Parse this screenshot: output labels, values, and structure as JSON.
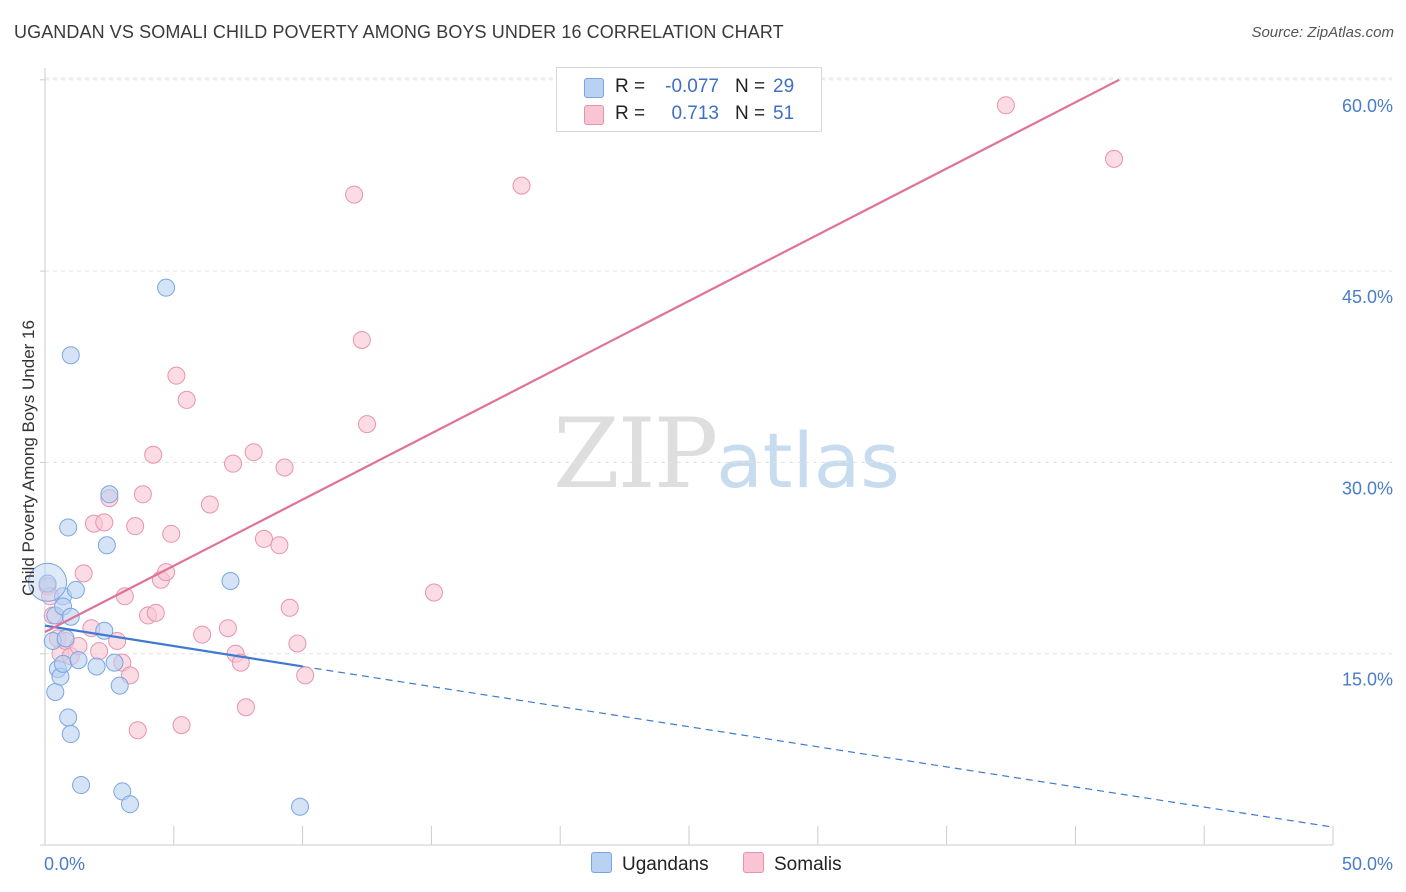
{
  "header": {
    "title": "UGANDAN VS SOMALI CHILD POVERTY AMONG BOYS UNDER 16 CORRELATION CHART",
    "source": "Source: ZipAtlas.com"
  },
  "watermark": {
    "zip": "ZIP",
    "atlas": "atlas"
  },
  "legend": {
    "rows": [
      {
        "r_label": "R =",
        "r_value": "-0.077",
        "n_label": "N =",
        "n_value": "29"
      },
      {
        "r_label": "R =",
        "r_value": "0.713",
        "n_label": "N =",
        "n_value": "51"
      }
    ]
  },
  "bottom_legend": {
    "ugandans": "Ugandans",
    "somalis": "Somalis"
  },
  "colors": {
    "ugandans_fill": "#b9d1f2",
    "ugandans_stroke": "#7aa6e0",
    "ugandans_line": "#3e7ad1",
    "somalis_fill": "#f9c4d4",
    "somalis_stroke": "#e893ad",
    "somalis_line": "#e0729a",
    "tick_text": "#4a7cc9",
    "grid": "#e3e3e3"
  },
  "chart_data": {
    "type": "scatter",
    "title": "UGANDAN VS SOMALI CHILD POVERTY AMONG BOYS UNDER 16 CORRELATION CHART",
    "xlabel": "",
    "ylabel": "Child Poverty Among Boys Under 16",
    "xlim": [
      0,
      50
    ],
    "ylim": [
      0,
      60
    ],
    "x_tick_labels": [
      "0.0%",
      "50.0%"
    ],
    "y_ticks": [
      15,
      30,
      45,
      60
    ],
    "y_tick_labels": [
      "15.0%",
      "30.0%",
      "45.0%",
      "60.0%"
    ],
    "grid": true,
    "series": [
      {
        "name": "Ugandans",
        "points": [
          [
            0.1,
            20.5
          ],
          [
            0.3,
            16.0
          ],
          [
            0.4,
            12.0
          ],
          [
            0.4,
            18.0
          ],
          [
            0.5,
            13.8
          ],
          [
            0.6,
            13.2
          ],
          [
            0.7,
            14.2
          ],
          [
            0.7,
            19.5
          ],
          [
            0.7,
            18.7
          ],
          [
            0.8,
            16.2
          ],
          [
            0.9,
            10.0
          ],
          [
            0.9,
            24.9
          ],
          [
            1.0,
            8.7
          ],
          [
            1.0,
            38.4
          ],
          [
            1.0,
            17.9
          ],
          [
            1.2,
            20.0
          ],
          [
            1.3,
            14.5
          ],
          [
            1.4,
            4.7
          ],
          [
            2.0,
            14.0
          ],
          [
            2.3,
            16.8
          ],
          [
            2.4,
            23.5
          ],
          [
            2.5,
            27.5
          ],
          [
            2.7,
            14.3
          ],
          [
            2.9,
            12.5
          ],
          [
            3.0,
            4.2
          ],
          [
            3.3,
            3.2
          ],
          [
            4.7,
            43.7
          ],
          [
            7.2,
            20.7
          ],
          [
            9.9,
            3.0
          ]
        ],
        "trend": {
          "x0": 0,
          "y0": 17.2,
          "x1": 10,
          "y1": 14.0,
          "dashed_to_x": 50,
          "dashed_to_y": 1.4
        }
      },
      {
        "name": "Somalis",
        "points": [
          [
            0.1,
            20.3
          ],
          [
            0.2,
            19.5
          ],
          [
            0.3,
            18.0
          ],
          [
            0.5,
            16.2
          ],
          [
            0.6,
            15.0
          ],
          [
            0.8,
            16.0
          ],
          [
            1.0,
            14.8
          ],
          [
            1.3,
            15.6
          ],
          [
            1.5,
            21.3
          ],
          [
            1.8,
            17.0
          ],
          [
            1.9,
            25.2
          ],
          [
            2.1,
            15.2
          ],
          [
            2.3,
            25.3
          ],
          [
            2.5,
            27.2
          ],
          [
            2.8,
            16.0
          ],
          [
            3.0,
            14.3
          ],
          [
            3.1,
            19.5
          ],
          [
            3.3,
            13.3
          ],
          [
            3.5,
            25.0
          ],
          [
            3.6,
            9.0
          ],
          [
            3.8,
            27.5
          ],
          [
            4.0,
            18.0
          ],
          [
            4.2,
            30.6
          ],
          [
            4.3,
            18.2
          ],
          [
            4.5,
            20.8
          ],
          [
            4.7,
            21.4
          ],
          [
            4.9,
            24.4
          ],
          [
            5.1,
            36.8
          ],
          [
            5.3,
            9.4
          ],
          [
            5.5,
            34.9
          ],
          [
            6.1,
            16.5
          ],
          [
            6.4,
            26.7
          ],
          [
            7.1,
            17.0
          ],
          [
            7.3,
            29.9
          ],
          [
            7.4,
            15.0
          ],
          [
            7.6,
            14.3
          ],
          [
            7.8,
            10.8
          ],
          [
            8.1,
            30.8
          ],
          [
            8.5,
            24.0
          ],
          [
            9.1,
            23.5
          ],
          [
            9.3,
            29.6
          ],
          [
            9.5,
            18.6
          ],
          [
            9.8,
            15.8
          ],
          [
            10.1,
            13.3
          ],
          [
            12.0,
            51.0
          ],
          [
            12.3,
            39.6
          ],
          [
            12.5,
            33.0
          ],
          [
            15.1,
            19.8
          ],
          [
            18.5,
            51.7
          ],
          [
            37.3,
            58.0
          ],
          [
            41.5,
            53.8
          ]
        ],
        "trend": {
          "x0": 0,
          "y0": 16.7,
          "x1": 41.7,
          "y1": 60.0
        }
      }
    ]
  }
}
